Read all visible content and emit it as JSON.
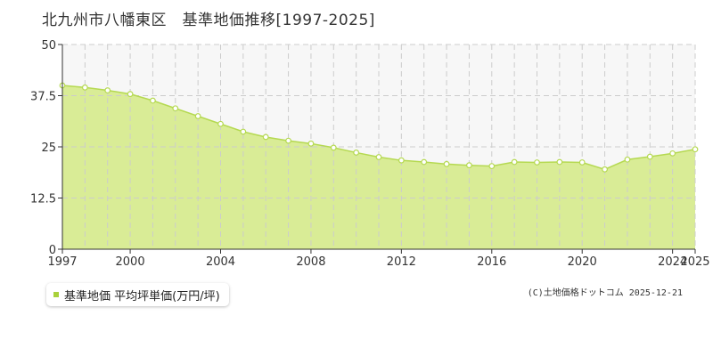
{
  "title": "北九州市八幡東区　基準地価推移[1997-2025]",
  "legend": {
    "label": "基準地価 平均坪単価(万円/坪)"
  },
  "credit": "(C)土地価格ドットコム 2025-12-21",
  "colors": {
    "area_fill": "#d9ec96",
    "line": "#b5d951",
    "band": "#f7f7f7",
    "grid": "#cccccc",
    "axis": "#333333",
    "marker_fill": "#ffffff",
    "legend_swatch": "#a9d13b"
  },
  "chart_data": {
    "type": "area",
    "title": "北九州市八幡東区　基準地価推移[1997-2025]",
    "xlabel": "",
    "ylabel": "",
    "xlim": [
      1997,
      2025
    ],
    "ylim": [
      0,
      50
    ],
    "yticks": [
      0,
      12.5,
      25,
      37.5,
      50
    ],
    "ytick_labels": [
      "0",
      "12.5",
      "25",
      "37.5",
      "50"
    ],
    "xticks": [
      1997,
      2000,
      2004,
      2008,
      2012,
      2016,
      2020,
      2024,
      2025
    ],
    "xtick_labels": [
      "1997",
      "2000",
      "2004",
      "2008",
      "2012",
      "2016",
      "2020",
      "2024",
      "2025"
    ],
    "grid": true,
    "legend_position": "bottom-left",
    "series": [
      {
        "name": "基準地価 平均坪単価(万円/坪)",
        "x": [
          1997,
          1998,
          1999,
          2000,
          2001,
          2002,
          2003,
          2004,
          2005,
          2006,
          2007,
          2008,
          2009,
          2010,
          2011,
          2012,
          2013,
          2014,
          2015,
          2016,
          2017,
          2018,
          2019,
          2020,
          2021,
          2022,
          2023,
          2024,
          2025
        ],
        "values": [
          40.0,
          39.5,
          38.8,
          37.9,
          36.3,
          34.4,
          32.5,
          30.6,
          28.7,
          27.4,
          26.5,
          25.8,
          24.8,
          23.6,
          22.5,
          21.7,
          21.3,
          20.8,
          20.5,
          20.3,
          21.3,
          21.2,
          21.3,
          21.2,
          19.5,
          21.9,
          22.6,
          23.4,
          24.4
        ]
      }
    ]
  }
}
